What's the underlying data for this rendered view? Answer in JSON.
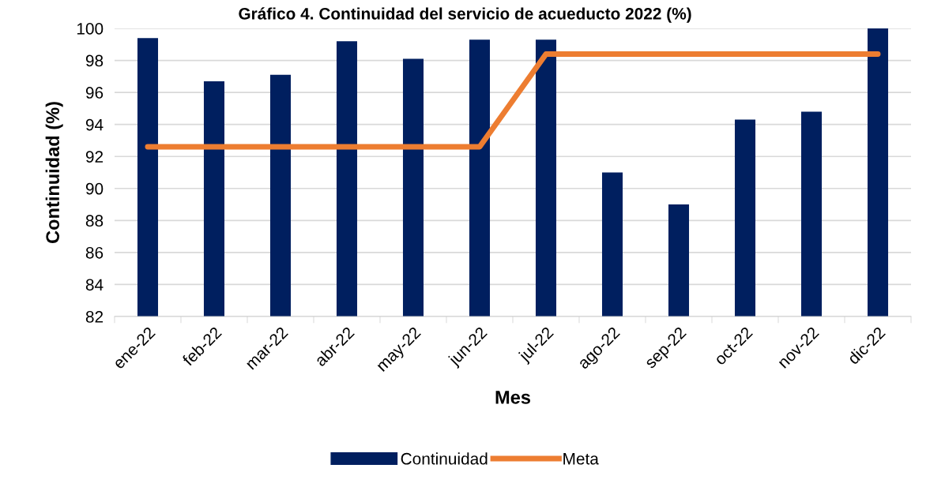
{
  "chart_data": {
    "type": "bar",
    "title": "Gráfico 4. Continuidad del servicio de acueducto 2022 (%)",
    "xlabel": "Mes",
    "ylabel": "Continuidad (%)",
    "categories": [
      "ene-22",
      "feb-22",
      "mar-22",
      "abr-22",
      "may-22",
      "jun-22",
      "jul-22",
      "ago-22",
      "sep-22",
      "oct-22",
      "nov-22",
      "dic-22"
    ],
    "series": [
      {
        "name": "Continuidad",
        "color": "#001f5f",
        "values": [
          99.4,
          96.7,
          97.1,
          99.2,
          98.1,
          99.3,
          99.3,
          91.0,
          89.0,
          94.3,
          94.8,
          100.0
        ]
      },
      {
        "name": "Meta",
        "type": "line",
        "color": "#ed7d31",
        "values": [
          92.6,
          92.6,
          92.6,
          92.6,
          92.6,
          92.6,
          98.4,
          98.4,
          98.4,
          98.4,
          98.4,
          98.4
        ]
      }
    ],
    "ylim": [
      82,
      100
    ],
    "yticks": [
      82,
      84,
      86,
      88,
      90,
      92,
      94,
      96,
      98,
      100
    ],
    "grid": "y",
    "legend": "bottom"
  }
}
